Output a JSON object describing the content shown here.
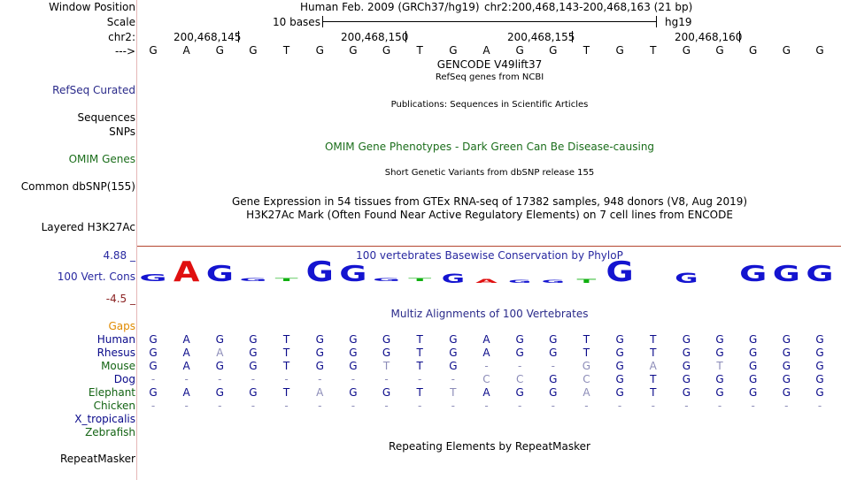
{
  "header": {
    "assembly": "Human Feb. 2009 (GRCh37/hg19)",
    "position": "chr2:200,468,143-200,468,163 (21 bp)",
    "scale_text": "10 bases",
    "scale_db": "hg19"
  },
  "labels": {
    "window_position": "Window Position",
    "scale": "Scale",
    "chr": "chr2:",
    "arrow": "--->",
    "refseq": "RefSeq Curated",
    "sequences": "Sequences",
    "snps": "SNPs",
    "omim": "OMIM Genes",
    "dbsnp": "Common dbSNP(155)",
    "layered": "Layered H3K27Ac",
    "cons_max": "4.88 _",
    "cons": "100 Vert. Cons",
    "cons_min": "-4.5 _",
    "gaps": "Gaps",
    "repeatmasker": "RepeatMasker"
  },
  "coordinates": [
    "200,468,145",
    "200,468,150",
    "200,468,155",
    "200,468,160"
  ],
  "reference_bases": [
    "G",
    "A",
    "G",
    "G",
    "T",
    "G",
    "G",
    "G",
    "T",
    "G",
    "A",
    "G",
    "G",
    "T",
    "G",
    "T",
    "G",
    "G",
    "G",
    "G",
    "G"
  ],
  "tracks": {
    "gencode_title": "GENCODE V49lift37",
    "refseq_sub": "RefSeq genes from NCBI",
    "publications": "Publications: Sequences in Scientific Articles",
    "omim_title": "OMIM Gene Phenotypes - Dark Green Can Be Disease-causing",
    "dbsnp_title": "Short Genetic Variants from dbSNP release 155",
    "gtex": "Gene Expression in 54 tissues from GTEx RNA-seq of 17382 samples, 948 donors (V8, Aug 2019)",
    "h3k27ac": "H3K27Ac Mark (Often Found Near Active Regulatory Elements) on 7 cell lines from ENCODE",
    "phylop": "100 vertebrates Basewise Conservation by PhyloP",
    "multiz": "Multiz Alignments of 100 Vertebrates",
    "repeatmasker_title": "Repeating Elements by RepeatMasker"
  },
  "conservation_letters": [
    "G",
    "A",
    "G",
    "G",
    "T",
    "G",
    "G",
    "G",
    "T",
    "G",
    "A",
    "G",
    "G",
    "T",
    "G",
    "T",
    "G",
    "G",
    "G",
    "G",
    "G"
  ],
  "conservation_scale": [
    0.35,
    1.0,
    0.8,
    0.1,
    0.05,
    1.0,
    0.8,
    0.05,
    0.1,
    -0.45,
    -0.2,
    -0.1,
    -0.1,
    -0.2,
    1.0,
    0,
    -0.5,
    0,
    0.8,
    0.8,
    0.8
  ],
  "species": [
    {
      "name": "Human",
      "color": "#0a0a8a",
      "bases": [
        "G",
        "A",
        "G",
        "G",
        "T",
        "G",
        "G",
        "G",
        "T",
        "G",
        "A",
        "G",
        "G",
        "T",
        "G",
        "T",
        "G",
        "G",
        "G",
        "G",
        "G"
      ],
      "dim": []
    },
    {
      "name": "Rhesus",
      "color": "#0a0a8a",
      "bases": [
        "G",
        "A",
        "A",
        "G",
        "T",
        "G",
        "G",
        "G",
        "T",
        "G",
        "A",
        "G",
        "G",
        "T",
        "G",
        "T",
        "G",
        "G",
        "G",
        "G",
        "G"
      ],
      "dim": [
        2
      ]
    },
    {
      "name": "Mouse",
      "color": "#146414",
      "bases": [
        "G",
        "A",
        "G",
        "G",
        "T",
        "G",
        "G",
        "T",
        "T",
        "G",
        "-",
        "-",
        "-",
        "G",
        "G",
        "A",
        "G",
        "T",
        "G",
        "G",
        "G"
      ],
      "dim": [
        7,
        13,
        15,
        17
      ]
    },
    {
      "name": "Dog",
      "color": "#0a0a8a",
      "bases": [
        "-",
        "-",
        "-",
        "-",
        "-",
        "-",
        "-",
        "-",
        "-",
        "-",
        "C",
        "C",
        "G",
        "C",
        "G",
        "T",
        "G",
        "G",
        "G",
        "G",
        "G"
      ],
      "dim": [
        10,
        11,
        13
      ]
    },
    {
      "name": "Elephant",
      "color": "#146414",
      "bases": [
        "G",
        "A",
        "G",
        "G",
        "T",
        "A",
        "G",
        "G",
        "T",
        "T",
        "A",
        "G",
        "G",
        "A",
        "G",
        "T",
        "G",
        "G",
        "G",
        "G",
        "G"
      ],
      "dim": [
        5,
        9,
        13
      ]
    },
    {
      "name": "Chicken",
      "color": "#146414",
      "bases": [
        "-",
        "-",
        "-",
        "-",
        "-",
        "-",
        "-",
        "-",
        "-",
        "-",
        "-",
        "-",
        "-",
        "-",
        "-",
        "-",
        "-",
        "-",
        "-",
        "-",
        "-"
      ],
      "dim": []
    },
    {
      "name": "X_tropicalis",
      "color": "#0a0a8a",
      "bases": [],
      "dim": []
    },
    {
      "name": "Zebrafish",
      "color": "#146414",
      "bases": [],
      "dim": []
    }
  ],
  "colors": {
    "navy": "#0a0a8a",
    "green": "#146414",
    "omim_green": "#1b6e1b",
    "gaps_orange": "#e08a00",
    "phylop_blue": "#2828a0",
    "axis_red": "#8b2222",
    "base_a": "#e01010",
    "base_t": "#10b010",
    "base_g": "#1414d0",
    "base_c": "#1414d0"
  }
}
